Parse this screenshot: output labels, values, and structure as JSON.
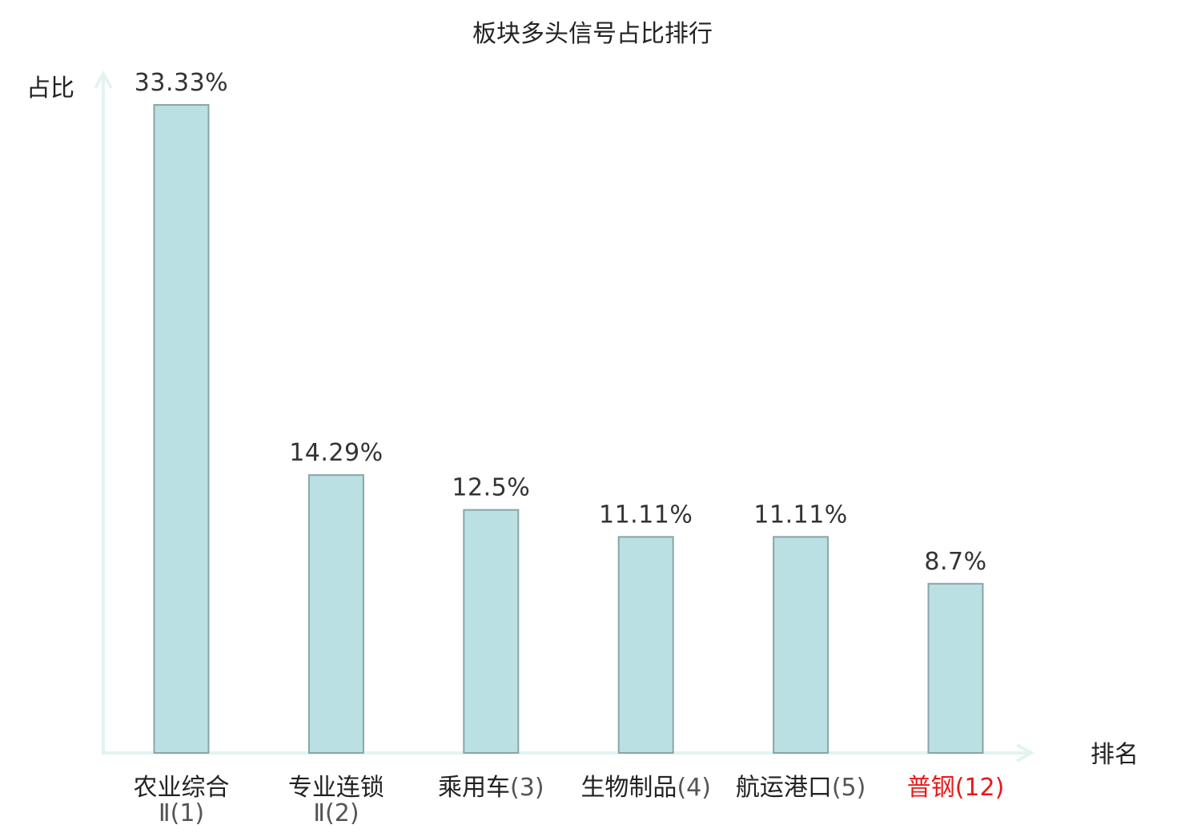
{
  "colors": {
    "bar_fill": "#bbe0e3",
    "bar_stroke": "#8aa5a8",
    "axis": "#e3f3f1",
    "text": "#222222",
    "value_text": "#333333",
    "category_text": "#222222",
    "subtext": "#555555",
    "highlight": "#e8191a"
  },
  "chart_data": {
    "type": "bar",
    "title": "板块多头信号占比排行",
    "xlabel": "排名",
    "ylabel": "占比",
    "ylim": [
      0,
      35
    ],
    "grid": false,
    "categories": [
      {
        "name": "农业综合",
        "sub": "Ⅱ(1)",
        "rank": "",
        "value": 33.33,
        "label": "33.33%",
        "highlight": false
      },
      {
        "name": "专业连锁",
        "sub": "Ⅱ(2)",
        "rank": "",
        "value": 14.29,
        "label": "14.29%",
        "highlight": false
      },
      {
        "name": "乘用车",
        "sub": "",
        "rank": "(3)",
        "value": 12.5,
        "label": "12.5%",
        "highlight": false
      },
      {
        "name": "生物制品",
        "sub": "",
        "rank": "(4)",
        "value": 11.11,
        "label": "11.11%",
        "highlight": false
      },
      {
        "name": "航运港口",
        "sub": "",
        "rank": "(5)",
        "value": 11.11,
        "label": "11.11%",
        "highlight": false
      },
      {
        "name": "普钢",
        "sub": "",
        "rank": "(12)",
        "value": 8.7,
        "label": "8.7%",
        "highlight": true
      }
    ]
  }
}
